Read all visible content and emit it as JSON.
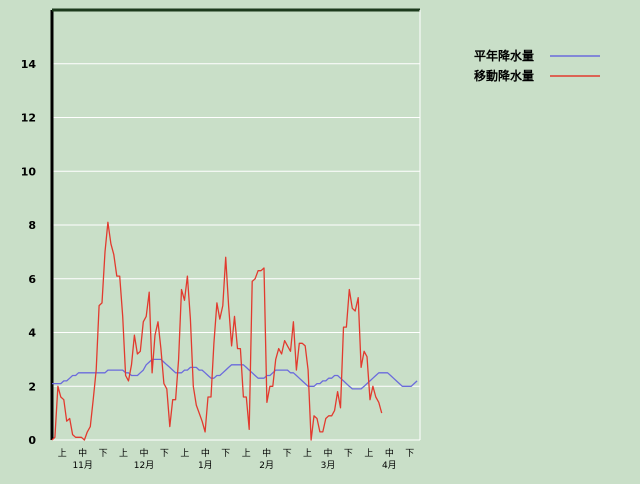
{
  "chart_data": {
    "type": "line",
    "title": "",
    "xlabel": "",
    "ylabel": "",
    "ylim": [
      0,
      16
    ],
    "yticks": [
      0,
      2,
      4,
      6,
      8,
      10,
      12,
      14
    ],
    "grid": true,
    "legend_position": "top-right",
    "x_period_labels": [
      "上",
      "中",
      "下",
      "上",
      "中",
      "下",
      "上",
      "中",
      "下",
      "上",
      "中",
      "下",
      "上",
      "中",
      "下",
      "上",
      "中",
      "下"
    ],
    "months": [
      "11月",
      "12月",
      "1月",
      "2月",
      "3月",
      "4月"
    ],
    "series": [
      {
        "name": "平年降水量",
        "color": "#6b6bdc",
        "values": [
          2.1,
          2.1,
          2.1,
          2.1,
          2.2,
          2.2,
          2.3,
          2.4,
          2.4,
          2.5,
          2.5,
          2.5,
          2.5,
          2.5,
          2.5,
          2.5,
          2.5,
          2.5,
          2.5,
          2.6,
          2.6,
          2.6,
          2.6,
          2.6,
          2.6,
          2.5,
          2.5,
          2.4,
          2.4,
          2.4,
          2.5,
          2.6,
          2.8,
          2.9,
          3.0,
          3.0,
          3.0,
          3.0,
          2.9,
          2.8,
          2.7,
          2.6,
          2.5,
          2.5,
          2.5,
          2.6,
          2.6,
          2.7,
          2.7,
          2.7,
          2.6,
          2.6,
          2.5,
          2.4,
          2.3,
          2.3,
          2.4,
          2.4,
          2.5,
          2.6,
          2.7,
          2.8,
          2.8,
          2.8,
          2.8,
          2.8,
          2.7,
          2.6,
          2.5,
          2.4,
          2.3,
          2.3,
          2.3,
          2.4,
          2.4,
          2.5,
          2.6,
          2.6,
          2.6,
          2.6,
          2.6,
          2.5,
          2.5,
          2.4,
          2.3,
          2.2,
          2.1,
          2.0,
          2.0,
          2.0,
          2.1,
          2.1,
          2.2,
          2.2,
          2.3,
          2.3,
          2.4,
          2.4,
          2.3,
          2.2,
          2.1,
          2.0,
          1.9,
          1.9,
          1.9,
          1.9,
          2.0,
          2.1,
          2.2,
          2.3,
          2.4,
          2.5,
          2.5,
          2.5,
          2.5,
          2.4,
          2.3,
          2.2,
          2.1,
          2.0,
          2.0,
          2.0,
          2.0,
          2.1,
          2.2
        ]
      },
      {
        "name": "移動降水量",
        "color": "#e23a2e",
        "values": [
          0.0,
          0.1,
          2.0,
          1.6,
          1.5,
          0.7,
          0.8,
          0.2,
          0.1,
          0.1,
          0.1,
          0.0,
          0.3,
          0.5,
          1.5,
          2.6,
          5.0,
          5.1,
          7.0,
          8.1,
          7.3,
          6.9,
          6.1,
          6.1,
          4.6,
          2.4,
          2.2,
          2.8,
          3.9,
          3.2,
          3.3,
          4.4,
          4.6,
          5.5,
          2.5,
          3.9,
          4.4,
          3.4,
          2.1,
          1.9,
          0.5,
          1.5,
          1.5,
          3.0,
          5.6,
          5.2,
          6.1,
          4.5,
          2.0,
          1.3,
          1.0,
          0.7,
          0.3,
          1.6,
          1.6,
          3.6,
          5.1,
          4.5,
          5.0,
          6.8,
          5.0,
          3.5,
          4.6,
          3.4,
          3.4,
          1.6,
          1.6,
          0.4,
          5.9,
          6.0,
          6.3,
          6.3,
          6.4,
          1.4,
          2.0,
          2.0,
          3.0,
          3.4,
          3.2,
          3.7,
          3.5,
          3.3,
          4.4,
          2.6,
          3.6,
          3.6,
          3.5,
          2.6,
          0.0,
          0.9,
          0.8,
          0.3,
          0.3,
          0.8,
          0.9,
          0.9,
          1.1,
          1.8,
          1.2,
          4.2,
          4.2,
          5.6,
          4.9,
          4.8,
          5.3,
          2.7,
          3.3,
          3.1,
          1.5,
          2.0,
          1.6,
          1.4,
          1.0
        ]
      }
    ]
  }
}
